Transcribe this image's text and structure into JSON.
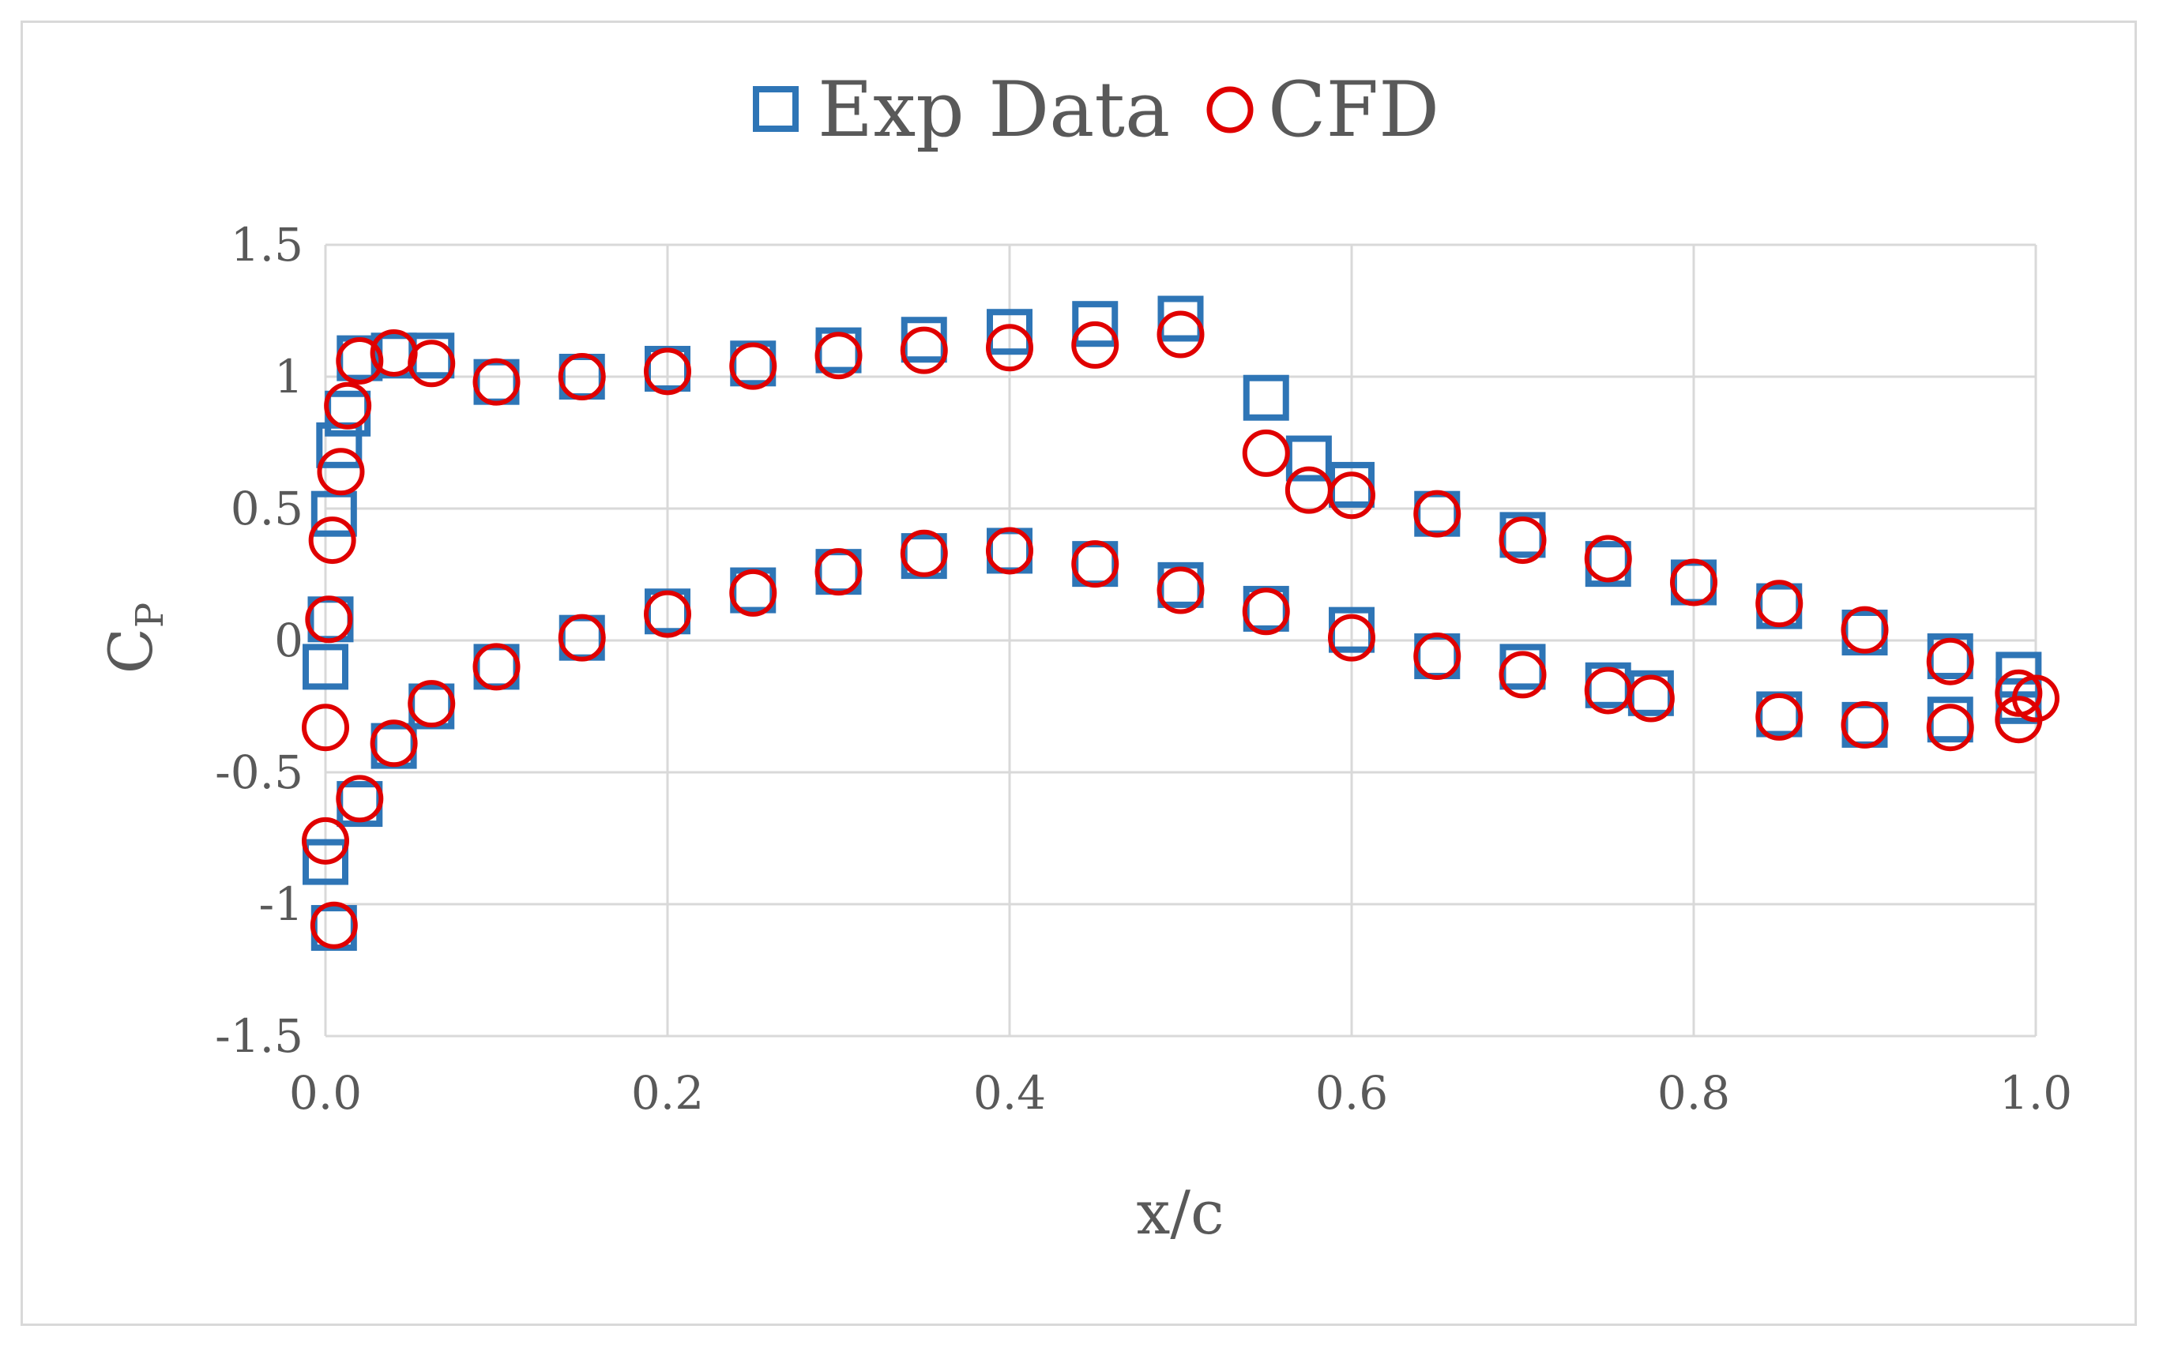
{
  "chart_data": {
    "type": "scatter",
    "title": "",
    "xlabel": "x/c",
    "ylabel": {
      "main": "C",
      "sub": "P"
    },
    "xlim": [
      0,
      1
    ],
    "ylim": [
      -1.5,
      1.5
    ],
    "xticks": [
      0,
      0.2,
      0.4,
      0.6,
      0.8,
      1.0
    ],
    "xtick_labels": [
      "0.0",
      "0.2",
      "0.4",
      "0.6",
      "0.8",
      "1.0"
    ],
    "yticks": [
      1.5,
      1,
      0.5,
      0,
      -0.5,
      -1,
      -1.5
    ],
    "ytick_labels": [
      "1.5",
      "1",
      "0.5",
      "0",
      "-0.5",
      "-1",
      "-1.5"
    ],
    "grid": true,
    "legend_position": "top-center",
    "series": [
      {
        "name": "Exp Data",
        "marker": "square",
        "color": "#2E75B6",
        "points": [
          [
            0.0,
            -0.1
          ],
          [
            0.003,
            0.08
          ],
          [
            0.005,
            0.48
          ],
          [
            0.008,
            0.74
          ],
          [
            0.013,
            0.86
          ],
          [
            0.02,
            1.07
          ],
          [
            0.04,
            1.08
          ],
          [
            0.062,
            1.08
          ],
          [
            0.1,
            0.98
          ],
          [
            0.15,
            1.0
          ],
          [
            0.2,
            1.03
          ],
          [
            0.25,
            1.05
          ],
          [
            0.3,
            1.1
          ],
          [
            0.35,
            1.14
          ],
          [
            0.4,
            1.17
          ],
          [
            0.45,
            1.2
          ],
          [
            0.5,
            1.22
          ],
          [
            0.55,
            0.92
          ],
          [
            0.575,
            0.69
          ],
          [
            0.6,
            0.59
          ],
          [
            0.65,
            0.48
          ],
          [
            0.7,
            0.4
          ],
          [
            0.75,
            0.29
          ],
          [
            0.8,
            0.22
          ],
          [
            0.85,
            0.13
          ],
          [
            0.9,
            0.03
          ],
          [
            0.95,
            -0.06
          ],
          [
            0.99,
            -0.13
          ],
          [
            0.0,
            -0.84
          ],
          [
            0.005,
            -1.09
          ],
          [
            0.02,
            -0.62
          ],
          [
            0.04,
            -0.4
          ],
          [
            0.062,
            -0.25
          ],
          [
            0.1,
            -0.1
          ],
          [
            0.15,
            0.01
          ],
          [
            0.2,
            0.11
          ],
          [
            0.25,
            0.19
          ],
          [
            0.3,
            0.26
          ],
          [
            0.35,
            0.32
          ],
          [
            0.4,
            0.34
          ],
          [
            0.45,
            0.29
          ],
          [
            0.5,
            0.21
          ],
          [
            0.55,
            0.12
          ],
          [
            0.6,
            0.04
          ],
          [
            0.65,
            -0.06
          ],
          [
            0.7,
            -0.1
          ],
          [
            0.75,
            -0.17
          ],
          [
            0.775,
            -0.2
          ],
          [
            0.85,
            -0.28
          ],
          [
            0.9,
            -0.32
          ],
          [
            0.95,
            -0.3
          ],
          [
            0.99,
            -0.23
          ]
        ]
      },
      {
        "name": "CFD",
        "marker": "circle",
        "color": "#E00000",
        "points": [
          [
            0.0,
            -0.33
          ],
          [
            0.002,
            0.08
          ],
          [
            0.004,
            0.38
          ],
          [
            0.009,
            0.64
          ],
          [
            0.013,
            0.89
          ],
          [
            0.02,
            1.06
          ],
          [
            0.04,
            1.09
          ],
          [
            0.062,
            1.05
          ],
          [
            0.1,
            0.98
          ],
          [
            0.15,
            1.0
          ],
          [
            0.2,
            1.02
          ],
          [
            0.25,
            1.04
          ],
          [
            0.3,
            1.08
          ],
          [
            0.35,
            1.1
          ],
          [
            0.4,
            1.11
          ],
          [
            0.45,
            1.12
          ],
          [
            0.5,
            1.16
          ],
          [
            0.55,
            0.71
          ],
          [
            0.575,
            0.57
          ],
          [
            0.6,
            0.55
          ],
          [
            0.65,
            0.48
          ],
          [
            0.7,
            0.38
          ],
          [
            0.75,
            0.31
          ],
          [
            0.8,
            0.22
          ],
          [
            0.85,
            0.14
          ],
          [
            0.9,
            0.04
          ],
          [
            0.95,
            -0.08
          ],
          [
            0.99,
            -0.2
          ],
          [
            1.0,
            -0.22
          ],
          [
            0.0,
            -0.76
          ],
          [
            0.005,
            -1.08
          ],
          [
            0.02,
            -0.6
          ],
          [
            0.04,
            -0.39
          ],
          [
            0.062,
            -0.24
          ],
          [
            0.1,
            -0.1
          ],
          [
            0.15,
            0.01
          ],
          [
            0.2,
            0.1
          ],
          [
            0.25,
            0.18
          ],
          [
            0.3,
            0.26
          ],
          [
            0.35,
            0.33
          ],
          [
            0.4,
            0.34
          ],
          [
            0.45,
            0.29
          ],
          [
            0.5,
            0.19
          ],
          [
            0.55,
            0.11
          ],
          [
            0.6,
            0.01
          ],
          [
            0.65,
            -0.06
          ],
          [
            0.7,
            -0.13
          ],
          [
            0.75,
            -0.19
          ],
          [
            0.775,
            -0.22
          ],
          [
            0.85,
            -0.29
          ],
          [
            0.9,
            -0.32
          ],
          [
            0.95,
            -0.33
          ],
          [
            0.99,
            -0.3
          ]
        ]
      }
    ]
  }
}
